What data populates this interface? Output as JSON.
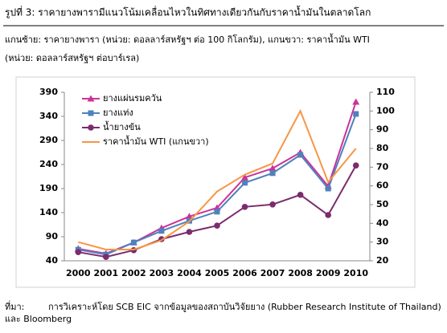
{
  "chart_data": {
    "type": "line",
    "title": "รูปที่ 3: ราคายางพารามีแนวโน้มเคลื่อนไหวในทิศทางเดียวกันกับราคาน้ำมันในตลาดโลก",
    "subtitle": [
      "แกนซ้าย: ราคายางพารา (หน่วย: ดอลลาร์สหรัฐฯ ต่อ 100 กิโลกรัม), แกนขวา: ราคาน้ำมัน WTI",
      "(หน่วย: ดอลลาร์สหรัฐฯ ต่อบาร์เรล)"
    ],
    "categories": [
      "2000",
      "2001",
      "2002",
      "2003",
      "2004",
      "2005",
      "2006",
      "2007",
      "2008",
      "2009",
      "2010"
    ],
    "series": [
      {
        "name": "ยางแผ่นรมควัน",
        "color": "#cc3399",
        "marker": "triangle",
        "values": [
          65,
          55,
          78,
          108,
          132,
          150,
          213,
          232,
          265,
          195,
          370
        ]
      },
      {
        "name": "ยางแท่ง",
        "color": "#4f81bd",
        "marker": "square",
        "values": [
          63,
          53,
          78,
          102,
          123,
          142,
          202,
          222,
          260,
          190,
          345
        ]
      },
      {
        "name": "น้ำยางข้น",
        "color": "#7b2c6e",
        "marker": "circle",
        "values": [
          58,
          48,
          62,
          85,
          100,
          113,
          152,
          157,
          177,
          135,
          238
        ]
      },
      {
        "name": "ราคาน้ำมัน WTI (แกนขวา)",
        "color": "#f79646",
        "marker": "none",
        "axis": "y2",
        "values": [
          30,
          26,
          26,
          31,
          41,
          57,
          66,
          72,
          100,
          62,
          80
        ]
      }
    ],
    "ylim": [
      40,
      390
    ],
    "yticks": [
      40,
      90,
      140,
      190,
      240,
      290,
      340,
      390
    ],
    "y2lim": [
      20,
      110
    ],
    "y2ticks": [
      20,
      30,
      40,
      50,
      60,
      70,
      80,
      90,
      100,
      110
    ],
    "grid": false,
    "legend": "top-left",
    "source_label": "ที่มา:",
    "source": [
      "การวิเคราะห์โดย SCB EIC จากข้อมูลของสถาบันวิจัยยาง (Rubber Research Institute of Thailand)",
      "และ Bloomberg"
    ]
  }
}
